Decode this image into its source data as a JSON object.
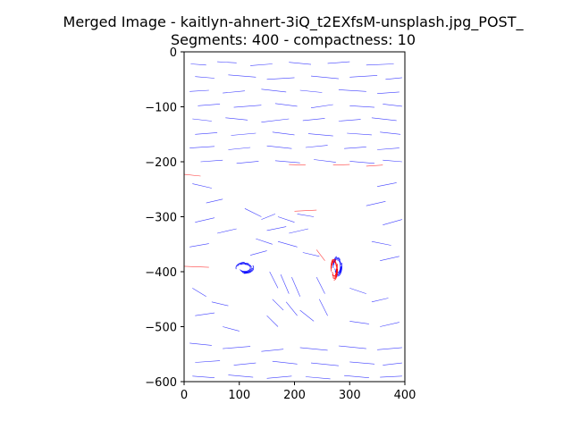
{
  "chart_data": {
    "type": "line",
    "title": "Merged Image - kaitlyn-ahnert-3iQ_t2EXfsM-unsplash.jpg_POST_",
    "subtitle": "Segments: 400 - compactness: 10",
    "xlabel": "",
    "ylabel": "",
    "xlim": [
      0,
      400
    ],
    "ylim": [
      -600,
      0
    ],
    "x_ticks": [
      "0",
      "100",
      "200",
      "300",
      "400"
    ],
    "y_ticks": [
      "0",
      "−100",
      "−200",
      "−300",
      "−400",
      "−500",
      "−600"
    ],
    "x_tick_values": [
      0,
      100,
      200,
      300,
      400
    ],
    "y_tick_values": [
      0,
      -100,
      -200,
      -300,
      -400,
      -500,
      -600
    ],
    "grid": false,
    "legend": "none",
    "colors": {
      "primary": "#0000ff",
      "secondary": "#ff0000"
    },
    "series": [
      {
        "color": "#0000ff",
        "style": "dense field of short thin strokes",
        "segments": [
          [
            [
              12,
              -22
            ],
            [
              40,
              -24
            ]
          ],
          [
            [
              60,
              -18
            ],
            [
              95,
              -20
            ]
          ],
          [
            [
              120,
              -25
            ],
            [
              160,
              -22
            ]
          ],
          [
            [
              190,
              -19
            ],
            [
              230,
              -23
            ]
          ],
          [
            [
              260,
              -21
            ],
            [
              300,
              -18
            ]
          ],
          [
            [
              330,
              -24
            ],
            [
              380,
              -22
            ]
          ],
          [
            [
              20,
              -45
            ],
            [
              55,
              -48
            ]
          ],
          [
            [
              80,
              -42
            ],
            [
              130,
              -46
            ]
          ],
          [
            [
              150,
              -50
            ],
            [
              200,
              -47
            ]
          ],
          [
            [
              230,
              -44
            ],
            [
              280,
              -49
            ]
          ],
          [
            [
              300,
              -46
            ],
            [
              350,
              -43
            ]
          ],
          [
            [
              365,
              -50
            ],
            [
              395,
              -47
            ]
          ],
          [
            [
              10,
              -72
            ],
            [
              45,
              -70
            ]
          ],
          [
            [
              70,
              -75
            ],
            [
              110,
              -71
            ]
          ],
          [
            [
              140,
              -68
            ],
            [
              185,
              -73
            ]
          ],
          [
            [
              210,
              -70
            ],
            [
              250,
              -74
            ]
          ],
          [
            [
              280,
              -69
            ],
            [
              330,
              -72
            ]
          ],
          [
            [
              350,
              -76
            ],
            [
              390,
              -73
            ]
          ],
          [
            [
              25,
              -98
            ],
            [
              65,
              -95
            ]
          ],
          [
            [
              90,
              -101
            ],
            [
              140,
              -97
            ]
          ],
          [
            [
              165,
              -94
            ],
            [
              205,
              -99
            ]
          ],
          [
            [
              230,
              -102
            ],
            [
              270,
              -96
            ]
          ],
          [
            [
              300,
              -98
            ],
            [
              345,
              -101
            ]
          ],
          [
            [
              360,
              -95
            ],
            [
              395,
              -99
            ]
          ],
          [
            [
              15,
              -122
            ],
            [
              50,
              -126
            ]
          ],
          [
            [
              75,
              -120
            ],
            [
              115,
              -124
            ]
          ],
          [
            [
              140,
              -128
            ],
            [
              190,
              -122
            ]
          ],
          [
            [
              215,
              -125
            ],
            [
              255,
              -121
            ]
          ],
          [
            [
              280,
              -126
            ],
            [
              320,
              -123
            ]
          ],
          [
            [
              340,
              -120
            ],
            [
              385,
              -125
            ]
          ],
          [
            [
              20,
              -150
            ],
            [
              60,
              -147
            ]
          ],
          [
            [
              85,
              -152
            ],
            [
              130,
              -148
            ]
          ],
          [
            [
              160,
              -146
            ],
            [
              200,
              -151
            ]
          ],
          [
            [
              225,
              -149
            ],
            [
              270,
              -153
            ]
          ],
          [
            [
              295,
              -148
            ],
            [
              340,
              -151
            ]
          ],
          [
            [
              355,
              -146
            ],
            [
              392,
              -150
            ]
          ],
          [
            [
              10,
              -175
            ],
            [
              55,
              -172
            ]
          ],
          [
            [
              80,
              -178
            ],
            [
              120,
              -174
            ]
          ],
          [
            [
              150,
              -171
            ],
            [
              195,
              -176
            ]
          ],
          [
            [
              220,
              -174
            ],
            [
              260,
              -170
            ]
          ],
          [
            [
              290,
              -176
            ],
            [
              330,
              -173
            ]
          ],
          [
            [
              350,
              -178
            ],
            [
              390,
              -175
            ]
          ],
          [
            [
              30,
              -200
            ],
            [
              70,
              -197
            ]
          ],
          [
            [
              95,
              -203
            ],
            [
              135,
              -199
            ]
          ],
          [
            [
              165,
              -198
            ],
            [
              210,
              -202
            ]
          ],
          [
            [
              235,
              -196
            ],
            [
              275,
              -201
            ]
          ],
          [
            [
              300,
              -199
            ],
            [
              345,
              -203
            ]
          ],
          [
            [
              360,
              -197
            ],
            [
              395,
              -200
            ]
          ],
          [
            [
              15,
              -240
            ],
            [
              50,
              -248
            ]
          ],
          [
            [
              40,
              -275
            ],
            [
              70,
              -268
            ]
          ],
          [
            [
              20,
              -310
            ],
            [
              55,
              -302
            ]
          ],
          [
            [
              60,
              -330
            ],
            [
              95,
              -322
            ]
          ],
          [
            [
              10,
              -355
            ],
            [
              45,
              -349
            ]
          ],
          [
            [
              350,
              -245
            ],
            [
              385,
              -238
            ]
          ],
          [
            [
              330,
              -280
            ],
            [
              365,
              -272
            ]
          ],
          [
            [
              360,
              -315
            ],
            [
              395,
              -305
            ]
          ],
          [
            [
              340,
              -345
            ],
            [
              375,
              -352
            ]
          ],
          [
            [
              355,
              -380
            ],
            [
              390,
              -372
            ]
          ],
          [
            [
              110,
              -285
            ],
            [
              140,
              -300
            ]
          ],
          [
            [
              140,
              -305
            ],
            [
              165,
              -295
            ]
          ],
          [
            [
              170,
              -300
            ],
            [
              200,
              -310
            ]
          ],
          [
            [
              205,
              -295
            ],
            [
              235,
              -300
            ]
          ],
          [
            [
              150,
              -325
            ],
            [
              185,
              -318
            ]
          ],
          [
            [
              190,
              -330
            ],
            [
              225,
              -322
            ]
          ],
          [
            [
              130,
              -340
            ],
            [
              160,
              -350
            ]
          ],
          [
            [
              170,
              -345
            ],
            [
              205,
              -355
            ]
          ],
          [
            [
              120,
              -370
            ],
            [
              150,
              -362
            ]
          ],
          [
            [
              215,
              -365
            ],
            [
              245,
              -372
            ]
          ],
          [
            [
              155,
              -400
            ],
            [
              170,
              -430
            ]
          ],
          [
            [
              175,
              -405
            ],
            [
              190,
              -440
            ]
          ],
          [
            [
              195,
              -410
            ],
            [
              210,
              -445
            ]
          ],
          [
            [
              160,
              -450
            ],
            [
              180,
              -470
            ]
          ],
          [
            [
              185,
              -455
            ],
            [
              205,
              -480
            ]
          ],
          [
            [
              150,
              -480
            ],
            [
              170,
              -500
            ]
          ],
          [
            [
              210,
              -470
            ],
            [
              235,
              -490
            ]
          ],
          [
            [
              240,
              -410
            ],
            [
              255,
              -440
            ]
          ],
          [
            [
              245,
              -450
            ],
            [
              260,
              -480
            ]
          ],
          [
            [
              15,
              -430
            ],
            [
              40,
              -445
            ]
          ],
          [
            [
              50,
              -455
            ],
            [
              80,
              -462
            ]
          ],
          [
            [
              20,
              -480
            ],
            [
              55,
              -475
            ]
          ],
          [
            [
              70,
              -500
            ],
            [
              100,
              -508
            ]
          ],
          [
            [
              300,
              -430
            ],
            [
              330,
              -440
            ]
          ],
          [
            [
              340,
              -455
            ],
            [
              370,
              -448
            ]
          ],
          [
            [
              300,
              -490
            ],
            [
              335,
              -495
            ]
          ],
          [
            [
              355,
              -500
            ],
            [
              390,
              -492
            ]
          ],
          [
            [
              10,
              -530
            ],
            [
              50,
              -534
            ]
          ],
          [
            [
              70,
              -540
            ],
            [
              120,
              -536
            ]
          ],
          [
            [
              140,
              -545
            ],
            [
              180,
              -541
            ]
          ],
          [
            [
              210,
              -538
            ],
            [
              260,
              -543
            ]
          ],
          [
            [
              280,
              -535
            ],
            [
              330,
              -540
            ]
          ],
          [
            [
              350,
              -542
            ],
            [
              395,
              -538
            ]
          ],
          [
            [
              20,
              -565
            ],
            [
              65,
              -562
            ]
          ],
          [
            [
              90,
              -570
            ],
            [
              130,
              -566
            ]
          ],
          [
            [
              160,
              -563
            ],
            [
              205,
              -568
            ]
          ],
          [
            [
              230,
              -566
            ],
            [
              280,
              -571
            ]
          ],
          [
            [
              300,
              -564
            ],
            [
              345,
              -568
            ]
          ],
          [
            [
              360,
              -570
            ],
            [
              395,
              -566
            ]
          ],
          [
            [
              15,
              -590
            ],
            [
              55,
              -593
            ]
          ],
          [
            [
              80,
              -588
            ],
            [
              125,
              -592
            ]
          ],
          [
            [
              150,
              -594
            ],
            [
              195,
              -590
            ]
          ],
          [
            [
              220,
              -591
            ],
            [
              265,
              -595
            ]
          ],
          [
            [
              290,
              -589
            ],
            [
              335,
              -593
            ]
          ],
          [
            [
              355,
              -592
            ],
            [
              395,
              -590
            ]
          ]
        ],
        "arcs": [
          {
            "cx": 110,
            "cy": -393,
            "rx": 16,
            "ry": 10
          },
          {
            "cx": 278,
            "cy": -390,
            "rx": 8,
            "ry": 18
          }
        ]
      },
      {
        "color": "#ff0000",
        "style": "sparse thin strokes",
        "segments": [
          [
            [
              0,
              -223
            ],
            [
              30,
              -226
            ]
          ],
          [
            [
              190,
              -205
            ],
            [
              220,
              -206
            ]
          ],
          [
            [
              270,
              -206
            ],
            [
              300,
              -205
            ]
          ],
          [
            [
              330,
              -208
            ],
            [
              360,
              -206
            ]
          ],
          [
            [
              0,
              -390
            ],
            [
              45,
              -392
            ]
          ],
          [
            [
              200,
              -290
            ],
            [
              240,
              -288
            ]
          ],
          [
            [
              240,
              -360
            ],
            [
              255,
              -380
            ]
          ]
        ],
        "arcs": [
          {
            "cx": 272,
            "cy": -395,
            "rx": 6,
            "ry": 20
          }
        ]
      }
    ]
  }
}
